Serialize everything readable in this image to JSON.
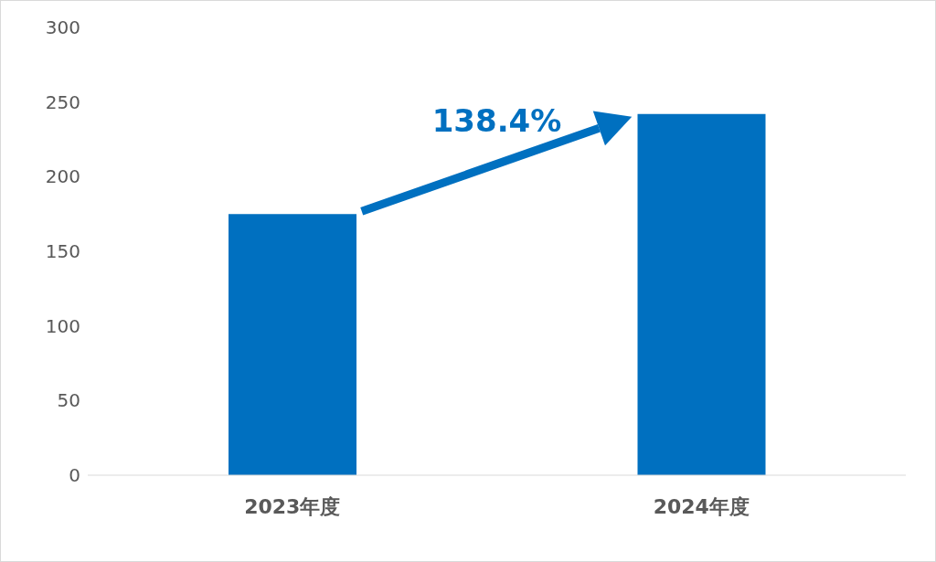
{
  "chart_data": {
    "type": "bar",
    "categories": [
      "2023年度",
      "2024年度"
    ],
    "values": [
      175,
      242
    ],
    "color": "#0070c0",
    "ylim": [
      0,
      300
    ],
    "yticks": [
      0,
      50,
      100,
      150,
      200,
      250,
      300
    ],
    "annotations": [
      "138.4%"
    ]
  }
}
